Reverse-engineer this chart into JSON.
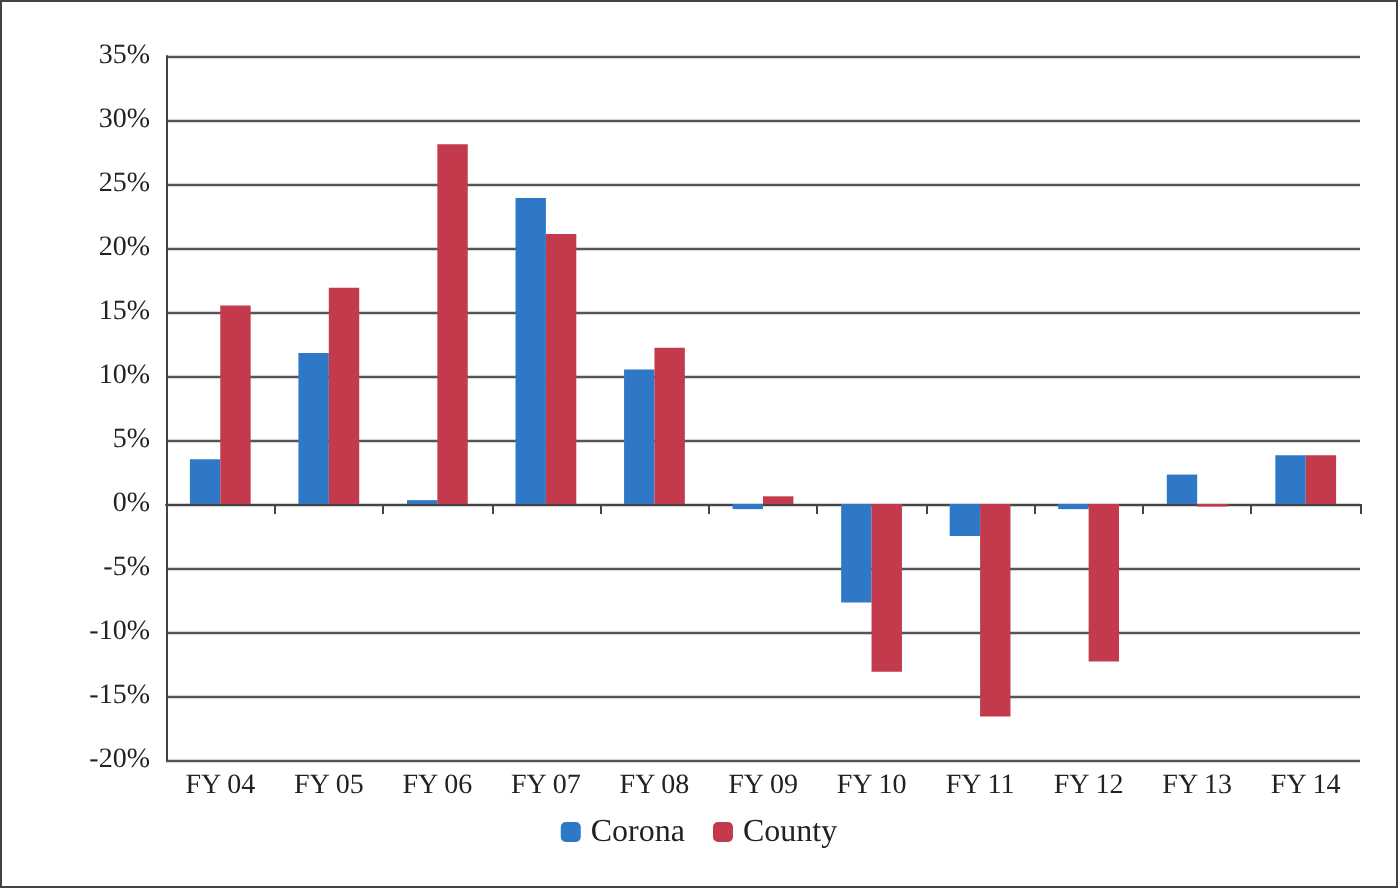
{
  "chart_data": {
    "type": "bar",
    "categories": [
      "FY 04",
      "FY 05",
      "FY 06",
      "FY 07",
      "FY 08",
      "FY 09",
      "FY 10",
      "FY 11",
      "FY 12",
      "FY 13",
      "FY 14"
    ],
    "series": [
      {
        "name": "Corona",
        "color": "#2f78c8",
        "values": [
          3.5,
          11.8,
          0.3,
          23.9,
          10.5,
          -0.4,
          -7.7,
          -2.5,
          -0.4,
          2.3,
          3.8
        ]
      },
      {
        "name": "County",
        "color": "#c23a4c",
        "values": [
          15.5,
          16.9,
          28.1,
          21.1,
          12.2,
          0.6,
          -13.1,
          -16.6,
          -12.3,
          -0.2,
          3.8
        ]
      }
    ],
    "ylim": [
      -20,
      35
    ],
    "yticks": [
      {
        "value": -20,
        "label": "-20%"
      },
      {
        "value": -15,
        "label": "-15%"
      },
      {
        "value": -10,
        "label": "-10%"
      },
      {
        "value": -5,
        "label": "-5%"
      },
      {
        "value": 0,
        "label": "0%"
      },
      {
        "value": 5,
        "label": "5%"
      },
      {
        "value": 10,
        "label": "10%"
      },
      {
        "value": 15,
        "label": "15%"
      },
      {
        "value": 20,
        "label": "20%"
      },
      {
        "value": 25,
        "label": "25%"
      },
      {
        "value": 30,
        "label": "30%"
      },
      {
        "value": 35,
        "label": "35%"
      }
    ],
    "grid": "y",
    "legend": "bottom"
  }
}
